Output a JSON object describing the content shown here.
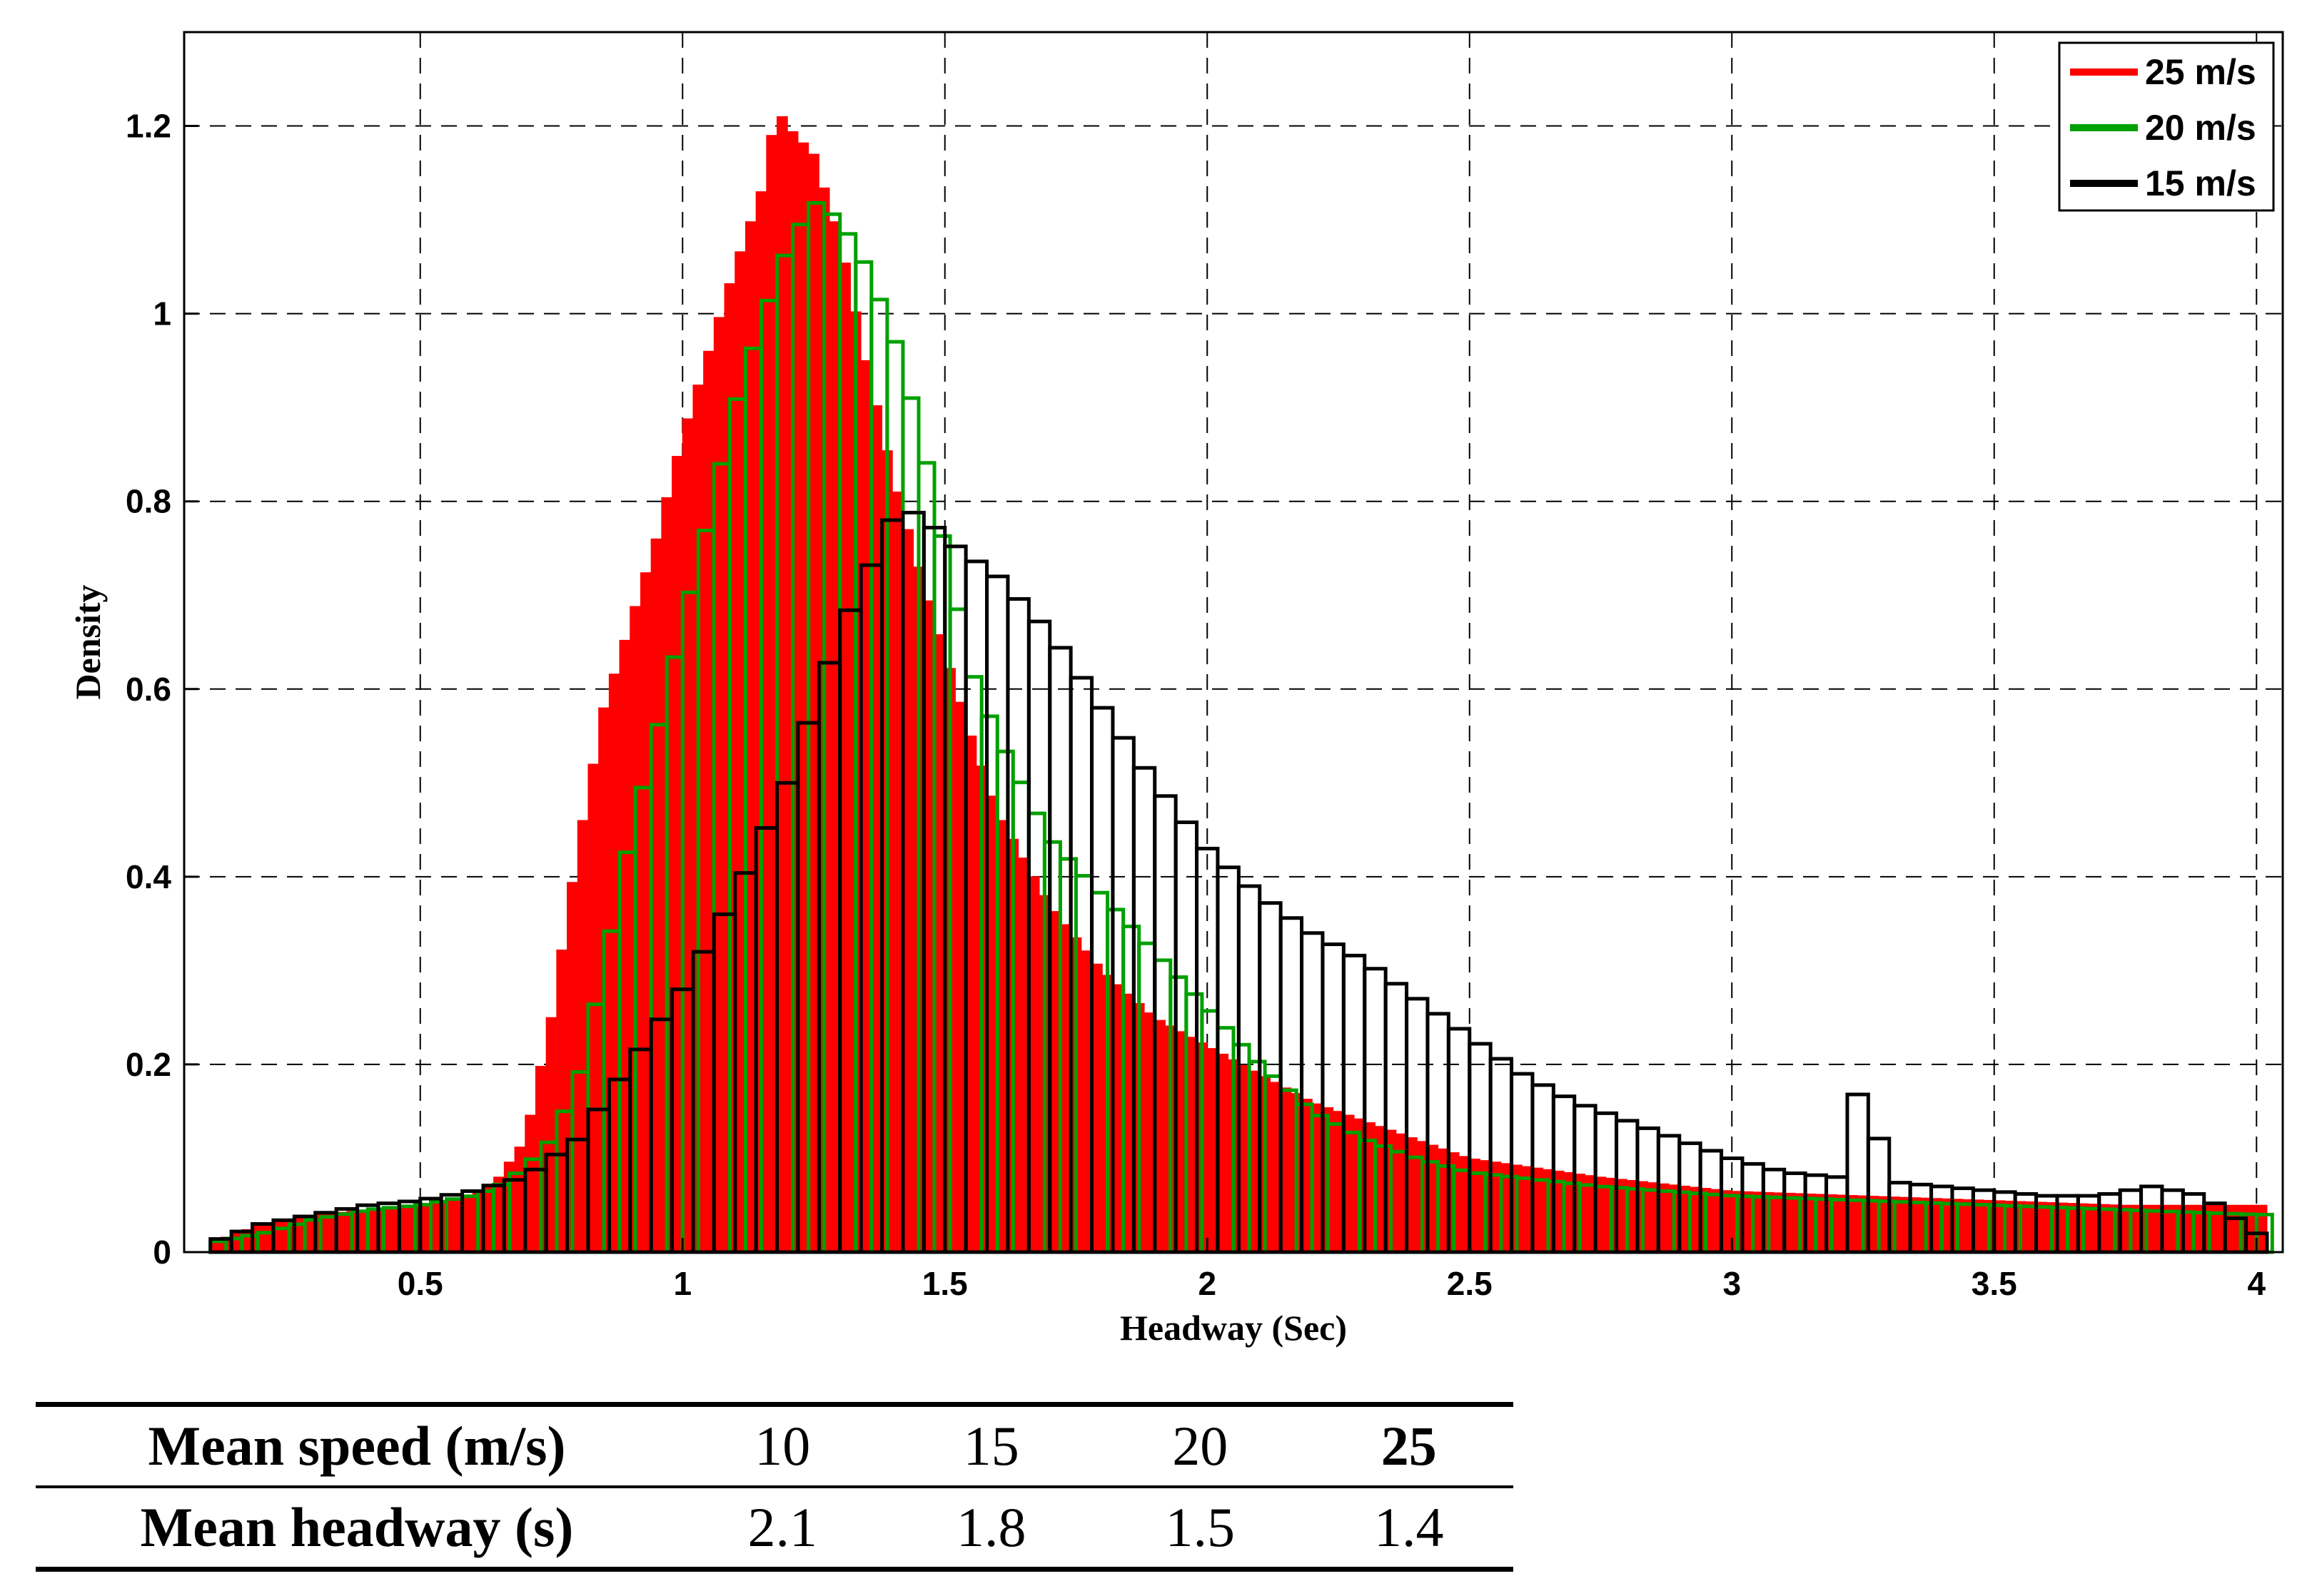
{
  "chart_data": {
    "type": "histogram",
    "xlabel": "Headway (Sec)",
    "ylabel": "Density",
    "xlim": [
      0.05,
      4.05
    ],
    "ylim": [
      0,
      1.3
    ],
    "x_ticks": [
      0.5,
      1,
      1.5,
      2,
      2.5,
      3,
      3.5,
      4
    ],
    "x_tick_labels": [
      "0.5",
      "1",
      "1.5",
      "2",
      "2.5",
      "3",
      "3.5",
      "4"
    ],
    "y_ticks": [
      0,
      0.2,
      0.4,
      0.6,
      0.8,
      1,
      1.2
    ],
    "y_tick_labels": [
      "0",
      "0.2",
      "0.4",
      "0.6",
      "0.8",
      "1",
      "1.2"
    ],
    "grid": true,
    "legend_position": "top-right",
    "series": [
      {
        "name": "25 m/s",
        "color": "#ff0000",
        "style": "filled",
        "bin_width": 0.02,
        "x": [
          0.1,
          0.2,
          0.3,
          0.4,
          0.5,
          0.6,
          0.65,
          0.7,
          0.75,
          0.8,
          0.85,
          0.9,
          0.95,
          1.0,
          1.05,
          1.1,
          1.15,
          1.18,
          1.2,
          1.25,
          1.3,
          1.35,
          1.4,
          1.45,
          1.5,
          1.55,
          1.6,
          1.7,
          1.8,
          1.9,
          2.0,
          2.1,
          2.2,
          2.3,
          2.4,
          2.5,
          2.75,
          3.0,
          3.25,
          3.5,
          3.75,
          4.0
        ],
        "y": [
          0.01,
          0.03,
          0.04,
          0.045,
          0.05,
          0.06,
          0.08,
          0.12,
          0.25,
          0.43,
          0.58,
          0.67,
          0.76,
          0.87,
          0.96,
          1.05,
          1.13,
          1.22,
          1.2,
          1.17,
          1.08,
          0.95,
          0.83,
          0.73,
          0.64,
          0.55,
          0.47,
          0.37,
          0.3,
          0.25,
          0.22,
          0.19,
          0.16,
          0.14,
          0.12,
          0.1,
          0.08,
          0.065,
          0.06,
          0.055,
          0.05,
          0.05
        ]
      },
      {
        "name": "20 m/s",
        "color": "#00a000",
        "style": "outline",
        "bin_width": 0.03,
        "x": [
          0.1,
          0.2,
          0.3,
          0.4,
          0.5,
          0.6,
          0.65,
          0.7,
          0.75,
          0.8,
          0.85,
          0.9,
          0.95,
          1.0,
          1.05,
          1.1,
          1.15,
          1.2,
          1.25,
          1.3,
          1.35,
          1.4,
          1.45,
          1.5,
          1.55,
          1.6,
          1.7,
          1.8,
          1.9,
          2.0,
          2.1,
          2.2,
          2.3,
          2.4,
          2.5,
          2.75,
          3.0,
          3.25,
          3.5,
          3.75,
          4.0
        ],
        "y": [
          0.01,
          0.02,
          0.035,
          0.045,
          0.05,
          0.06,
          0.07,
          0.09,
          0.12,
          0.18,
          0.3,
          0.44,
          0.55,
          0.67,
          0.78,
          0.9,
          0.99,
          1.07,
          1.12,
          1.1,
          1.05,
          0.98,
          0.88,
          0.75,
          0.62,
          0.55,
          0.44,
          0.38,
          0.32,
          0.26,
          0.2,
          0.15,
          0.12,
          0.1,
          0.085,
          0.07,
          0.06,
          0.055,
          0.05,
          0.045,
          0.04
        ]
      },
      {
        "name": "15 m/s",
        "color": "#000000",
        "style": "outline",
        "bin_width": 0.04,
        "x": [
          0.1,
          0.2,
          0.3,
          0.4,
          0.5,
          0.6,
          0.7,
          0.8,
          0.9,
          1.0,
          1.1,
          1.2,
          1.25,
          1.3,
          1.35,
          1.4,
          1.45,
          1.5,
          1.55,
          1.6,
          1.7,
          1.8,
          1.9,
          2.0,
          2.1,
          2.2,
          2.3,
          2.4,
          2.5,
          2.6,
          2.7,
          2.8,
          2.9,
          3.0,
          3.1,
          3.2,
          3.25,
          3.3,
          3.4,
          3.5,
          3.6,
          3.7,
          3.8,
          3.9,
          4.0
        ],
        "y": [
          0.01,
          0.03,
          0.04,
          0.05,
          0.055,
          0.065,
          0.08,
          0.12,
          0.2,
          0.28,
          0.38,
          0.5,
          0.58,
          0.66,
          0.72,
          0.78,
          0.79,
          0.76,
          0.74,
          0.72,
          0.66,
          0.58,
          0.5,
          0.43,
          0.38,
          0.34,
          0.31,
          0.27,
          0.23,
          0.19,
          0.16,
          0.14,
          0.12,
          0.1,
          0.085,
          0.08,
          0.19,
          0.075,
          0.07,
          0.065,
          0.06,
          0.06,
          0.07,
          0.06,
          0.02
        ]
      }
    ]
  },
  "legend": [
    {
      "label": "25 m/s",
      "color": "#ff0000"
    },
    {
      "label": "20 m/s",
      "color": "#00a000"
    },
    {
      "label": "15 m/s",
      "color": "#000000"
    }
  ],
  "table": {
    "row1_label": "Mean speed (m/s)",
    "row1_values": [
      "10",
      "15",
      "20",
      "25"
    ],
    "row2_label": "Mean headway (s)",
    "row2_values": [
      "2.1",
      "1.8",
      "1.5",
      "1.4"
    ]
  }
}
